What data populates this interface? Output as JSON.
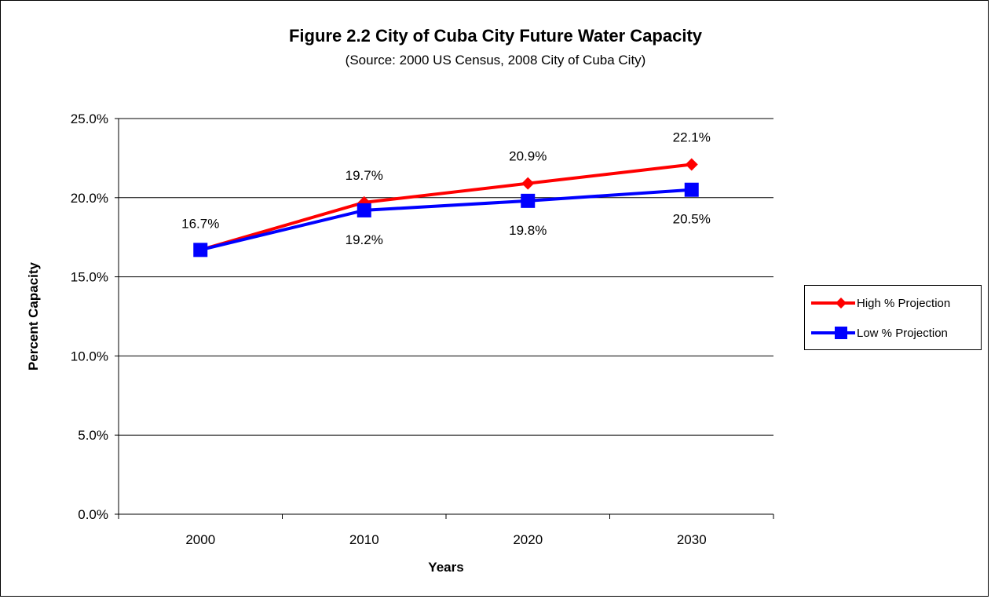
{
  "chart_data": {
    "type": "line",
    "title": "Figure 2.2 City of Cuba City Future Water Capacity",
    "subtitle": "(Source:  2000 US Census, 2008 City of Cuba City)",
    "xlabel": "Years",
    "ylabel": "Percent Capacity",
    "categories": [
      "2000",
      "2010",
      "2020",
      "2030"
    ],
    "ylim": [
      0,
      25
    ],
    "yticks": [
      "0.0%",
      "5.0%",
      "10.0%",
      "15.0%",
      "20.0%",
      "25.0%"
    ],
    "grid": true,
    "legend_position": "right",
    "series": [
      {
        "name": "High % Projection",
        "color": "#ff0000",
        "marker": "diamond",
        "values": [
          16.7,
          19.7,
          20.9,
          22.1
        ],
        "labels": [
          "",
          "19.7%",
          "20.9%",
          "22.1%"
        ],
        "label_position": "above"
      },
      {
        "name": "Low %  Projection",
        "color": "#0000ff",
        "marker": "square",
        "values": [
          16.7,
          19.2,
          19.8,
          20.5
        ],
        "labels": [
          "16.7%",
          "19.2%",
          "19.8%",
          "20.5%"
        ],
        "label_position": "mixed"
      }
    ]
  }
}
